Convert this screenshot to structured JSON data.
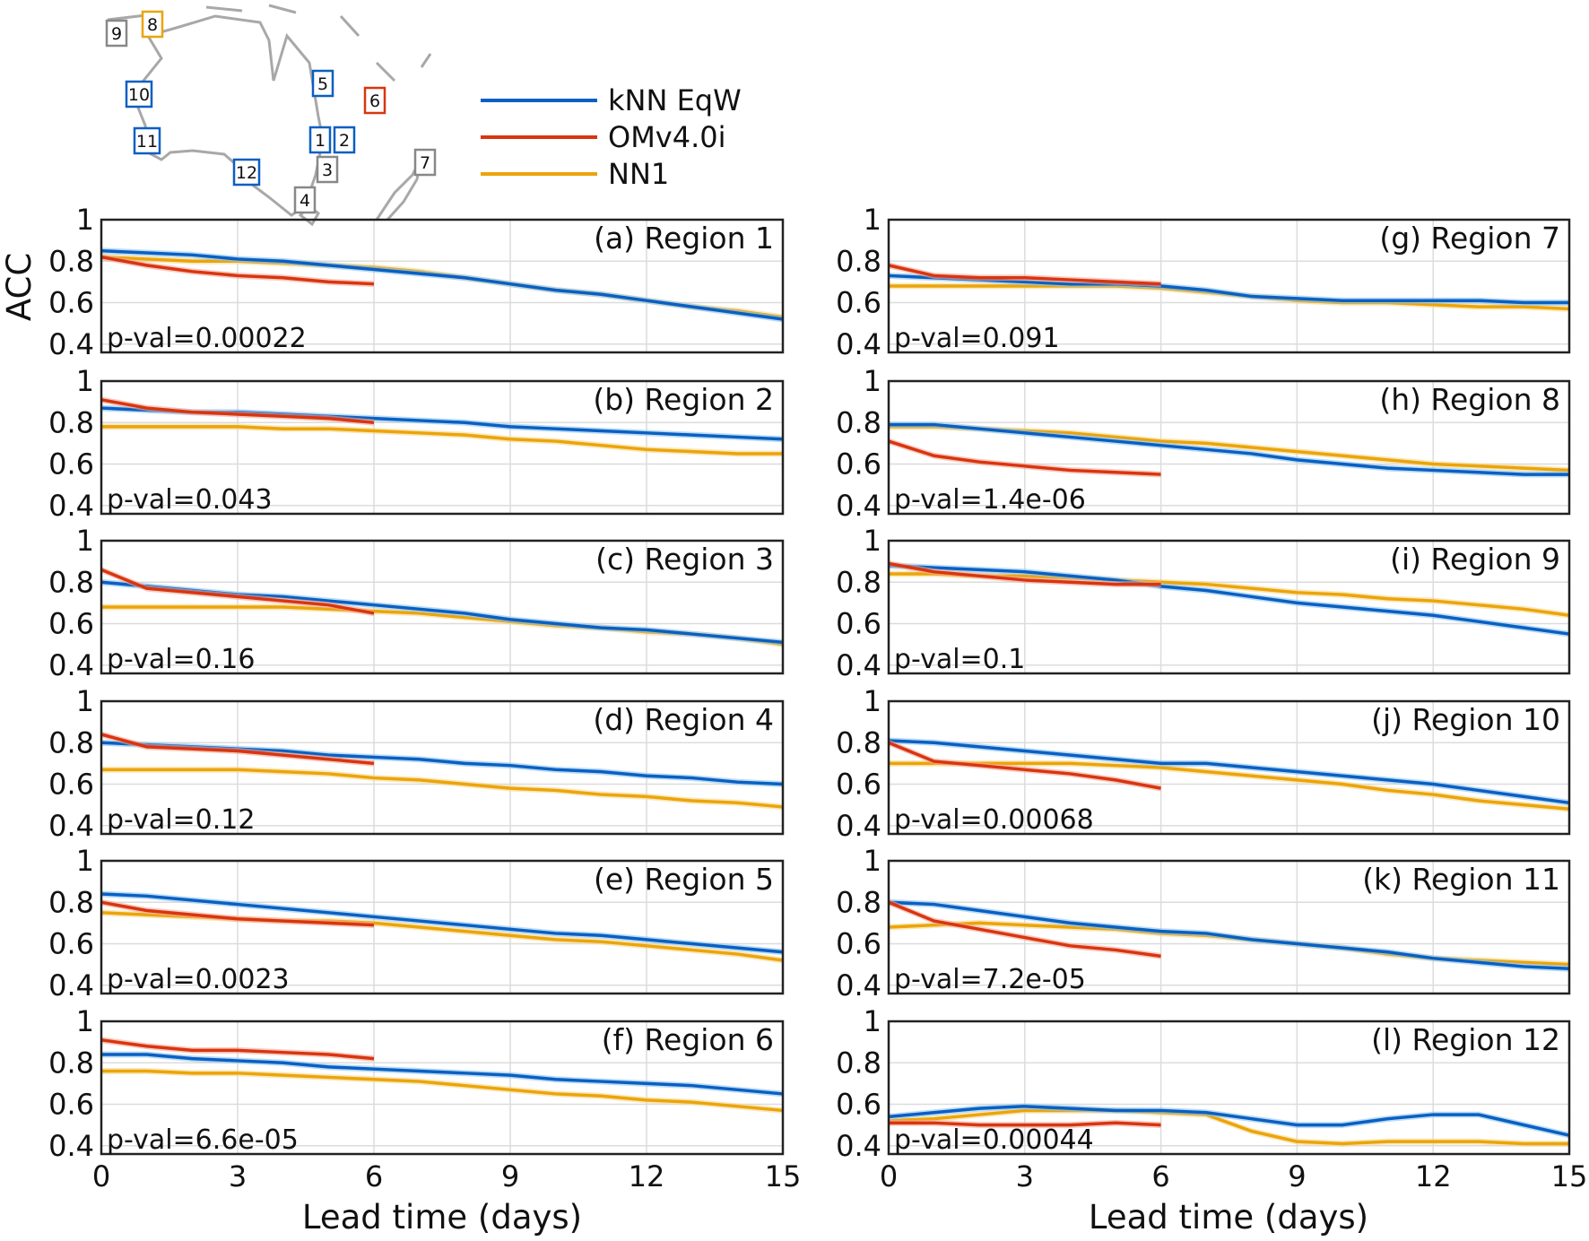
{
  "chart_data": {
    "type": "line",
    "ylabel": "ACC",
    "xlabel": "Lead time (days)",
    "xlim": [
      0,
      15
    ],
    "ylim": [
      0.36,
      1
    ],
    "xticks": [
      0,
      3,
      6,
      9,
      12,
      15
    ],
    "yticks": [
      0.4,
      0.6,
      0.8,
      1
    ],
    "ytick_labels": [
      "0.4",
      "0.6",
      "0.8",
      "1"
    ],
    "grid": true,
    "legend_placement": "top",
    "series_meta": [
      {
        "key": "knn",
        "name": "kNN EqW",
        "color": "#0a5fc2",
        "band": "#8cc4ee"
      },
      {
        "key": "om",
        "name": "OMv4.0i",
        "color": "#d9350f",
        "band": "#f2a898"
      },
      {
        "key": "nn1",
        "name": "NN1",
        "color": "#eba40a",
        "band": "#f6d98e"
      }
    ],
    "x": [
      0,
      1,
      2,
      3,
      4,
      5,
      6,
      7,
      8,
      9,
      10,
      11,
      12,
      13,
      14,
      15
    ],
    "x_om": [
      0,
      1,
      2,
      3,
      4,
      5,
      6
    ],
    "panels": [
      {
        "title": "(a) Region 1",
        "pval": "p-val=0.00022",
        "knn": [
          0.85,
          0.84,
          0.83,
          0.81,
          0.8,
          0.78,
          0.76,
          0.74,
          0.72,
          0.69,
          0.66,
          0.64,
          0.61,
          0.58,
          0.55,
          0.52
        ],
        "nn1": [
          0.82,
          0.81,
          0.8,
          0.8,
          0.79,
          0.78,
          0.77,
          0.75,
          0.72,
          0.69,
          0.66,
          0.64,
          0.61,
          0.58,
          0.56,
          0.53
        ],
        "om": [
          0.82,
          0.78,
          0.75,
          0.73,
          0.72,
          0.7,
          0.69
        ]
      },
      {
        "title": "(b) Region 2",
        "pval": "p-val=0.043",
        "knn": [
          0.87,
          0.86,
          0.85,
          0.85,
          0.84,
          0.83,
          0.82,
          0.81,
          0.8,
          0.78,
          0.77,
          0.76,
          0.75,
          0.74,
          0.73,
          0.72
        ],
        "nn1": [
          0.78,
          0.78,
          0.78,
          0.78,
          0.77,
          0.77,
          0.76,
          0.75,
          0.74,
          0.72,
          0.71,
          0.69,
          0.67,
          0.66,
          0.65,
          0.65
        ],
        "om": [
          0.91,
          0.87,
          0.85,
          0.84,
          0.83,
          0.82,
          0.8
        ]
      },
      {
        "title": "(c) Region 3",
        "pval": "p-val=0.16",
        "knn": [
          0.8,
          0.78,
          0.76,
          0.74,
          0.73,
          0.71,
          0.69,
          0.67,
          0.65,
          0.62,
          0.6,
          0.58,
          0.57,
          0.55,
          0.53,
          0.51
        ],
        "nn1": [
          0.68,
          0.68,
          0.68,
          0.68,
          0.68,
          0.67,
          0.66,
          0.65,
          0.63,
          0.61,
          0.59,
          0.58,
          0.56,
          0.55,
          0.53,
          0.5
        ],
        "om": [
          0.86,
          0.77,
          0.75,
          0.73,
          0.71,
          0.69,
          0.65
        ]
      },
      {
        "title": "(d) Region 4",
        "pval": "p-val=0.12",
        "knn": [
          0.8,
          0.79,
          0.78,
          0.77,
          0.76,
          0.74,
          0.73,
          0.72,
          0.7,
          0.69,
          0.67,
          0.66,
          0.64,
          0.63,
          0.61,
          0.6
        ],
        "nn1": [
          0.67,
          0.67,
          0.67,
          0.67,
          0.66,
          0.65,
          0.63,
          0.62,
          0.6,
          0.58,
          0.57,
          0.55,
          0.54,
          0.52,
          0.51,
          0.49
        ],
        "om": [
          0.84,
          0.78,
          0.77,
          0.76,
          0.74,
          0.72,
          0.7
        ]
      },
      {
        "title": "(e) Region 5",
        "pval": "p-val=0.0023",
        "knn": [
          0.84,
          0.83,
          0.81,
          0.79,
          0.77,
          0.75,
          0.73,
          0.71,
          0.69,
          0.67,
          0.65,
          0.64,
          0.62,
          0.6,
          0.58,
          0.56
        ],
        "nn1": [
          0.75,
          0.74,
          0.73,
          0.72,
          0.71,
          0.71,
          0.7,
          0.68,
          0.66,
          0.64,
          0.62,
          0.61,
          0.59,
          0.57,
          0.55,
          0.52
        ],
        "om": [
          0.8,
          0.76,
          0.74,
          0.72,
          0.71,
          0.7,
          0.69
        ]
      },
      {
        "title": "(f) Region 6",
        "pval": "p-val=6.6e-05",
        "knn": [
          0.84,
          0.84,
          0.82,
          0.81,
          0.8,
          0.78,
          0.77,
          0.76,
          0.75,
          0.74,
          0.72,
          0.71,
          0.7,
          0.69,
          0.67,
          0.65
        ],
        "nn1": [
          0.76,
          0.76,
          0.75,
          0.75,
          0.74,
          0.73,
          0.72,
          0.71,
          0.69,
          0.67,
          0.65,
          0.64,
          0.62,
          0.61,
          0.59,
          0.57
        ],
        "om": [
          0.91,
          0.88,
          0.86,
          0.86,
          0.85,
          0.84,
          0.82
        ]
      },
      {
        "title": "(g) Region 7",
        "pval": "p-val=0.091",
        "knn": [
          0.73,
          0.72,
          0.71,
          0.7,
          0.69,
          0.69,
          0.68,
          0.66,
          0.63,
          0.62,
          0.61,
          0.61,
          0.61,
          0.61,
          0.6,
          0.6
        ],
        "nn1": [
          0.68,
          0.68,
          0.68,
          0.68,
          0.68,
          0.68,
          0.67,
          0.65,
          0.63,
          0.61,
          0.6,
          0.6,
          0.59,
          0.58,
          0.58,
          0.57
        ],
        "om": [
          0.78,
          0.73,
          0.72,
          0.72,
          0.71,
          0.7,
          0.69
        ]
      },
      {
        "title": "(h) Region 8",
        "pval": "p-val=1.4e-06",
        "knn": [
          0.79,
          0.79,
          0.77,
          0.75,
          0.73,
          0.71,
          0.69,
          0.67,
          0.65,
          0.62,
          0.6,
          0.58,
          0.57,
          0.56,
          0.55,
          0.55
        ],
        "nn1": [
          0.78,
          0.78,
          0.77,
          0.76,
          0.75,
          0.73,
          0.71,
          0.7,
          0.68,
          0.66,
          0.64,
          0.62,
          0.6,
          0.59,
          0.58,
          0.57
        ],
        "om": [
          0.71,
          0.64,
          0.61,
          0.59,
          0.57,
          0.56,
          0.55
        ]
      },
      {
        "title": "(i) Region 9",
        "pval": "p-val=0.1",
        "knn": [
          0.88,
          0.87,
          0.86,
          0.85,
          0.83,
          0.81,
          0.78,
          0.76,
          0.73,
          0.7,
          0.68,
          0.66,
          0.64,
          0.61,
          0.58,
          0.55
        ],
        "nn1": [
          0.84,
          0.84,
          0.83,
          0.83,
          0.82,
          0.81,
          0.8,
          0.79,
          0.77,
          0.75,
          0.74,
          0.72,
          0.71,
          0.69,
          0.67,
          0.64
        ],
        "om": [
          0.89,
          0.85,
          0.83,
          0.81,
          0.8,
          0.79,
          0.79
        ]
      },
      {
        "title": "(j) Region 10",
        "pval": "p-val=0.00068",
        "knn": [
          0.81,
          0.8,
          0.78,
          0.76,
          0.74,
          0.72,
          0.7,
          0.7,
          0.68,
          0.66,
          0.64,
          0.62,
          0.6,
          0.57,
          0.54,
          0.51
        ],
        "nn1": [
          0.7,
          0.7,
          0.7,
          0.7,
          0.7,
          0.69,
          0.68,
          0.66,
          0.64,
          0.62,
          0.6,
          0.57,
          0.55,
          0.52,
          0.5,
          0.48
        ],
        "om": [
          0.8,
          0.71,
          0.69,
          0.67,
          0.65,
          0.62,
          0.58
        ]
      },
      {
        "title": "(k) Region 11",
        "pval": "p-val=7.2e-05",
        "knn": [
          0.8,
          0.79,
          0.76,
          0.73,
          0.7,
          0.68,
          0.66,
          0.65,
          0.62,
          0.6,
          0.58,
          0.56,
          0.53,
          0.51,
          0.49,
          0.48
        ],
        "nn1": [
          0.68,
          0.69,
          0.7,
          0.69,
          0.68,
          0.67,
          0.65,
          0.64,
          0.62,
          0.6,
          0.58,
          0.55,
          0.53,
          0.52,
          0.51,
          0.5
        ],
        "om": [
          0.8,
          0.71,
          0.67,
          0.63,
          0.59,
          0.57,
          0.54
        ]
      },
      {
        "title": "(l) Region 12",
        "pval": "p-val=0.00044",
        "knn": [
          0.54,
          0.56,
          0.58,
          0.59,
          0.58,
          0.57,
          0.57,
          0.56,
          0.53,
          0.5,
          0.5,
          0.53,
          0.55,
          0.55,
          0.5,
          0.45
        ],
        "nn1": [
          0.52,
          0.53,
          0.55,
          0.57,
          0.57,
          0.57,
          0.56,
          0.55,
          0.47,
          0.42,
          0.41,
          0.42,
          0.42,
          0.42,
          0.41,
          0.41
        ],
        "om": [
          0.51,
          0.51,
          0.5,
          0.5,
          0.5,
          0.51,
          0.5
        ]
      }
    ],
    "map_regions": [
      {
        "label": "1",
        "color": "#0a5fc2"
      },
      {
        "label": "2",
        "color": "#0a5fc2"
      },
      {
        "label": "3",
        "color": "#888888"
      },
      {
        "label": "4",
        "color": "#888888"
      },
      {
        "label": "5",
        "color": "#0a5fc2"
      },
      {
        "label": "6",
        "color": "#d9350f"
      },
      {
        "label": "7",
        "color": "#888888"
      },
      {
        "label": "8",
        "color": "#eba40a"
      },
      {
        "label": "9",
        "color": "#888888"
      },
      {
        "label": "10",
        "color": "#0a5fc2"
      },
      {
        "label": "11",
        "color": "#0a5fc2"
      },
      {
        "label": "12",
        "color": "#0a5fc2"
      }
    ]
  }
}
